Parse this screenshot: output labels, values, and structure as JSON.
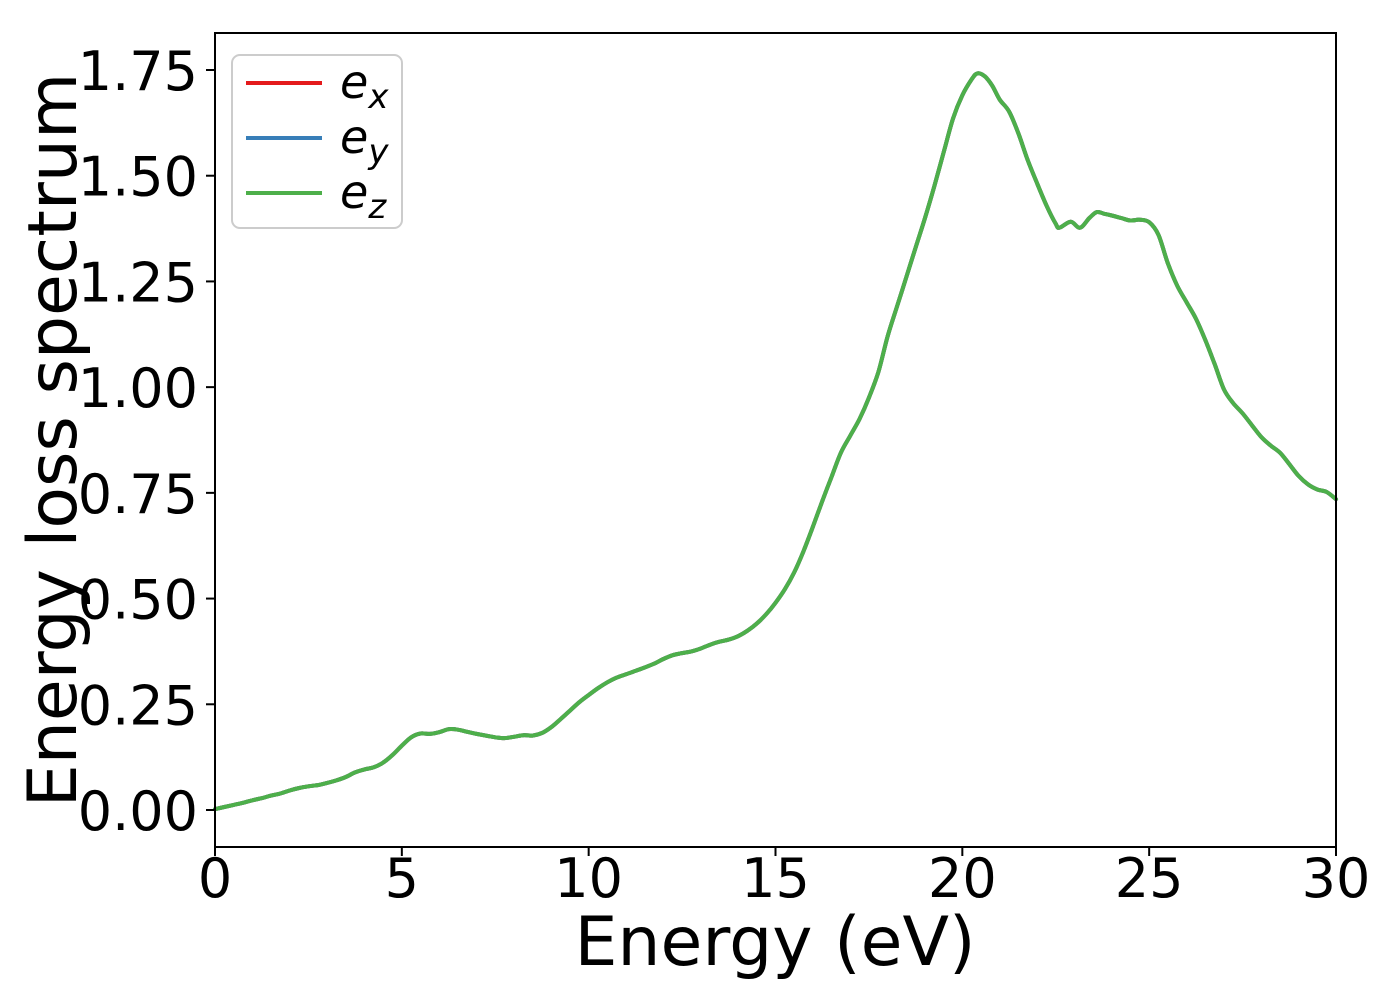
{
  "figure": {
    "background": "#ffffff"
  },
  "axes": {
    "spine_color": "#000000",
    "tick_color": "#000000",
    "text_color": "#000000"
  },
  "legend": {
    "position": "upper left",
    "border_color": "#cccccc",
    "background": "#ffffff",
    "entries": [
      {
        "name": "e_x",
        "label_base": "e",
        "label_sub": "x",
        "color": "#e41a1c"
      },
      {
        "name": "e_y",
        "label_base": "e",
        "label_sub": "y",
        "color": "#377eb8"
      },
      {
        "name": "e_z",
        "label_base": "e",
        "label_sub": "z",
        "color": "#4daf4a"
      }
    ]
  },
  "chart_data": {
    "type": "line",
    "title": "",
    "xlabel": "Energy (eV)",
    "ylabel": "Energy loss spectrum",
    "xlim": [
      0,
      30
    ],
    "ylim": [
      -0.0875,
      1.8375
    ],
    "x_ticks": [
      0,
      5,
      10,
      15,
      20,
      25,
      30
    ],
    "x_tick_labels": [
      "0",
      "5",
      "10",
      "15",
      "20",
      "25",
      "30"
    ],
    "y_ticks": [
      0.0,
      0.25,
      0.5,
      0.75,
      1.0,
      1.25,
      1.5,
      1.75
    ],
    "y_tick_labels": [
      "0.00",
      "0.25",
      "0.50",
      "0.75",
      "1.00",
      "1.25",
      "1.50",
      "1.75"
    ],
    "grid": false,
    "legend_position": "upper left",
    "x": [
      0,
      0.25,
      0.5,
      0.75,
      1,
      1.25,
      1.5,
      1.75,
      2,
      2.25,
      2.5,
      2.75,
      3,
      3.25,
      3.5,
      3.75,
      4,
      4.25,
      4.5,
      4.75,
      5,
      5.25,
      5.5,
      5.75,
      6,
      6.25,
      6.5,
      6.75,
      7,
      7.25,
      7.5,
      7.75,
      8,
      8.25,
      8.5,
      8.75,
      9,
      9.25,
      9.5,
      9.75,
      10,
      10.25,
      10.5,
      10.75,
      11,
      11.25,
      11.5,
      11.75,
      12,
      12.25,
      12.5,
      12.75,
      13,
      13.25,
      13.5,
      13.75,
      14,
      14.25,
      14.5,
      14.75,
      15,
      15.25,
      15.5,
      15.75,
      16,
      16.25,
      16.5,
      16.75,
      17,
      17.25,
      17.5,
      17.75,
      18,
      18.25,
      18.5,
      18.75,
      19,
      19.25,
      19.5,
      19.75,
      20,
      20.25,
      20.4,
      20.6,
      20.8,
      21,
      21.25,
      21.5,
      21.75,
      22,
      22.25,
      22.5,
      22.6,
      22.9,
      23.15,
      23.4,
      23.6,
      23.8,
      24,
      24.25,
      24.5,
      24.75,
      25,
      25.25,
      25.5,
      25.75,
      26,
      26.25,
      26.5,
      26.75,
      27,
      27.25,
      27.5,
      27.75,
      28,
      28.25,
      28.5,
      28.75,
      29,
      29.25,
      29.5,
      29.75,
      30
    ],
    "series": [
      {
        "name": "e_x",
        "color": "#e41a1c",
        "values": [
          0.002,
          0.007,
          0.012,
          0.017,
          0.023,
          0.028,
          0.034,
          0.039,
          0.046,
          0.052,
          0.056,
          0.059,
          0.064,
          0.07,
          0.078,
          0.089,
          0.096,
          0.101,
          0.112,
          0.13,
          0.152,
          0.172,
          0.181,
          0.18,
          0.184,
          0.191,
          0.19,
          0.185,
          0.18,
          0.176,
          0.172,
          0.17,
          0.173,
          0.177,
          0.176,
          0.182,
          0.196,
          0.215,
          0.235,
          0.255,
          0.272,
          0.288,
          0.302,
          0.313,
          0.321,
          0.329,
          0.337,
          0.346,
          0.357,
          0.366,
          0.371,
          0.375,
          0.382,
          0.391,
          0.398,
          0.403,
          0.411,
          0.424,
          0.441,
          0.463,
          0.49,
          0.522,
          0.562,
          0.612,
          0.67,
          0.73,
          0.788,
          0.845,
          0.885,
          0.925,
          0.975,
          1.035,
          1.12,
          1.19,
          1.26,
          1.33,
          1.4,
          1.475,
          1.555,
          1.635,
          1.69,
          1.728,
          1.742,
          1.735,
          1.713,
          1.68,
          1.652,
          1.6,
          1.537,
          1.482,
          1.43,
          1.386,
          1.377,
          1.391,
          1.377,
          1.4,
          1.414,
          1.41,
          1.406,
          1.4,
          1.394,
          1.396,
          1.39,
          1.36,
          1.293,
          1.24,
          1.201,
          1.162,
          1.112,
          1.055,
          0.995,
          0.962,
          0.938,
          0.91,
          0.882,
          0.862,
          0.845,
          0.818,
          0.79,
          0.77,
          0.758,
          0.752,
          0.735
        ]
      },
      {
        "name": "e_y",
        "color": "#377eb8",
        "values": [
          0.002,
          0.007,
          0.012,
          0.017,
          0.023,
          0.028,
          0.034,
          0.039,
          0.046,
          0.052,
          0.056,
          0.059,
          0.064,
          0.07,
          0.078,
          0.089,
          0.096,
          0.101,
          0.112,
          0.13,
          0.152,
          0.172,
          0.181,
          0.18,
          0.184,
          0.191,
          0.19,
          0.185,
          0.18,
          0.176,
          0.172,
          0.17,
          0.173,
          0.177,
          0.176,
          0.182,
          0.196,
          0.215,
          0.235,
          0.255,
          0.272,
          0.288,
          0.302,
          0.313,
          0.321,
          0.329,
          0.337,
          0.346,
          0.357,
          0.366,
          0.371,
          0.375,
          0.382,
          0.391,
          0.398,
          0.403,
          0.411,
          0.424,
          0.441,
          0.463,
          0.49,
          0.522,
          0.562,
          0.612,
          0.67,
          0.73,
          0.788,
          0.845,
          0.885,
          0.925,
          0.975,
          1.035,
          1.12,
          1.19,
          1.26,
          1.33,
          1.4,
          1.475,
          1.555,
          1.635,
          1.69,
          1.728,
          1.742,
          1.735,
          1.713,
          1.68,
          1.652,
          1.6,
          1.537,
          1.482,
          1.43,
          1.386,
          1.377,
          1.391,
          1.377,
          1.4,
          1.414,
          1.41,
          1.406,
          1.4,
          1.394,
          1.396,
          1.39,
          1.36,
          1.293,
          1.24,
          1.201,
          1.162,
          1.112,
          1.055,
          0.995,
          0.962,
          0.938,
          0.91,
          0.882,
          0.862,
          0.845,
          0.818,
          0.79,
          0.77,
          0.758,
          0.752,
          0.735
        ]
      },
      {
        "name": "e_z",
        "color": "#4daf4a",
        "values": [
          0.002,
          0.007,
          0.012,
          0.017,
          0.023,
          0.028,
          0.034,
          0.039,
          0.046,
          0.052,
          0.056,
          0.059,
          0.064,
          0.07,
          0.078,
          0.089,
          0.096,
          0.101,
          0.112,
          0.13,
          0.152,
          0.172,
          0.181,
          0.18,
          0.184,
          0.191,
          0.19,
          0.185,
          0.18,
          0.176,
          0.172,
          0.17,
          0.173,
          0.177,
          0.176,
          0.182,
          0.196,
          0.215,
          0.235,
          0.255,
          0.272,
          0.288,
          0.302,
          0.313,
          0.321,
          0.329,
          0.337,
          0.346,
          0.357,
          0.366,
          0.371,
          0.375,
          0.382,
          0.391,
          0.398,
          0.403,
          0.411,
          0.424,
          0.441,
          0.463,
          0.49,
          0.522,
          0.562,
          0.612,
          0.67,
          0.73,
          0.788,
          0.845,
          0.885,
          0.925,
          0.975,
          1.035,
          1.12,
          1.19,
          1.26,
          1.33,
          1.4,
          1.475,
          1.555,
          1.635,
          1.69,
          1.728,
          1.742,
          1.735,
          1.713,
          1.68,
          1.652,
          1.6,
          1.537,
          1.482,
          1.43,
          1.386,
          1.377,
          1.391,
          1.377,
          1.4,
          1.414,
          1.41,
          1.406,
          1.4,
          1.394,
          1.396,
          1.39,
          1.36,
          1.293,
          1.24,
          1.201,
          1.162,
          1.112,
          1.055,
          0.995,
          0.962,
          0.938,
          0.91,
          0.882,
          0.862,
          0.845,
          0.818,
          0.79,
          0.77,
          0.758,
          0.752,
          0.735
        ]
      }
    ]
  }
}
